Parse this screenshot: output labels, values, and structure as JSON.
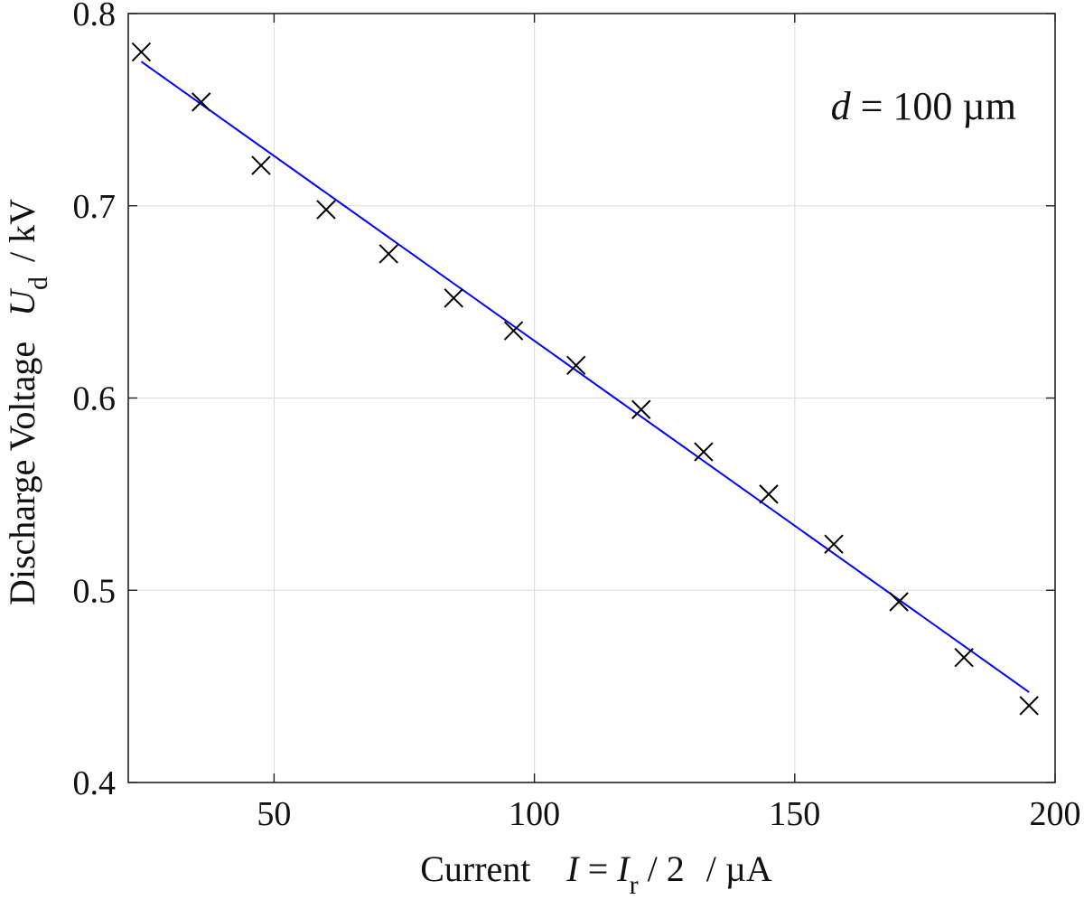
{
  "chart_data": {
    "type": "scatter",
    "title": "",
    "annotation": {
      "var": "d",
      "text": " = 100  µm"
    },
    "xlabel": {
      "prefix": "Current",
      "var": "I",
      "eq": " = ",
      "var2": "I",
      "sub2": "r",
      "rest": " / 2",
      "unit": " / µA"
    },
    "ylabel": {
      "prefix": "Discharge Voltage",
      "var": "U",
      "sub": "d",
      "unit": " / kV"
    },
    "xlim": [
      22,
      200
    ],
    "ylim": [
      0.4,
      0.8
    ],
    "xticks": [
      50,
      100,
      150,
      200
    ],
    "yticks": [
      0.4,
      0.5,
      0.6,
      0.7,
      0.8
    ],
    "xtick_labels": [
      "50",
      "100",
      "150",
      "200"
    ],
    "ytick_labels": [
      "0.4",
      "0.5",
      "0.6",
      "0.7",
      "0.8"
    ],
    "grid": true,
    "series": [
      {
        "kind": "markers",
        "marker": "x",
        "color": "#000000",
        "x": [
          24.5,
          36,
          47.5,
          60,
          72,
          84.5,
          96,
          108,
          120.5,
          132.5,
          145,
          157.5,
          170,
          182.5,
          195
        ],
        "y": [
          0.78,
          0.754,
          0.721,
          0.698,
          0.675,
          0.652,
          0.635,
          0.617,
          0.594,
          0.572,
          0.55,
          0.524,
          0.494,
          0.465,
          0.44
        ]
      },
      {
        "kind": "fit-line",
        "color": "#0000ff",
        "x": [
          24.5,
          195
        ],
        "y": [
          0.775,
          0.447
        ]
      }
    ]
  }
}
